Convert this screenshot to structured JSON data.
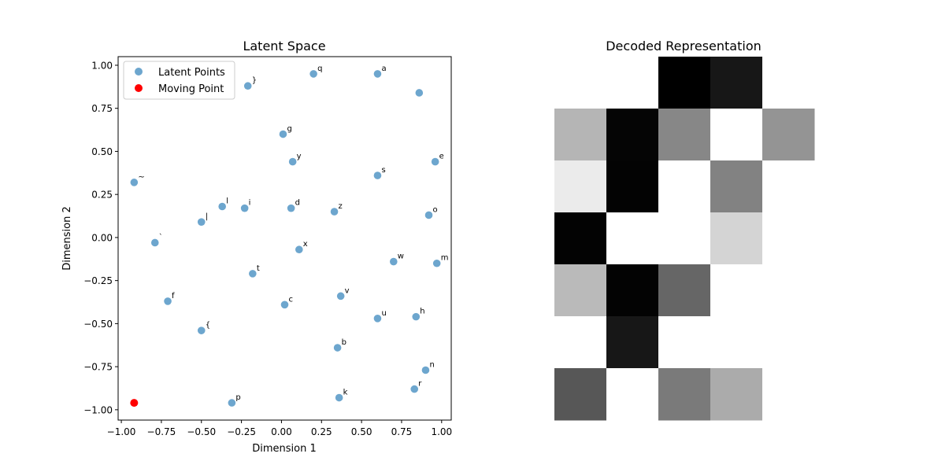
{
  "chart_data": [
    {
      "type": "scatter",
      "title": "Latent Space",
      "xlabel": "Dimension 1",
      "ylabel": "Dimension 2",
      "xlim": [
        -1.02,
        1.06
      ],
      "ylim": [
        -1.06,
        1.05
      ],
      "xticks": [
        "−1.00",
        "−0.75",
        "−0.50",
        "−0.25",
        "0.00",
        "0.25",
        "0.50",
        "0.75",
        "1.00"
      ],
      "xtick_values": [
        -1.0,
        -0.75,
        -0.5,
        -0.25,
        0.0,
        0.25,
        0.5,
        0.75,
        1.0
      ],
      "yticks": [
        "−1.00",
        "−0.75",
        "−0.50",
        "−0.25",
        "0.00",
        "0.25",
        "0.50",
        "0.75",
        "1.00"
      ],
      "ytick_values": [
        -1.0,
        -0.75,
        -0.5,
        -0.25,
        0.0,
        0.25,
        0.5,
        0.75,
        1.0
      ],
      "legend": {
        "placement": "top-left",
        "entries": [
          "Latent Points",
          "Moving Point"
        ]
      },
      "series": [
        {
          "name": "Latent Points",
          "color": "#1f77b4",
          "points": [
            {
              "x": -0.21,
              "y": 0.88,
              "label": "}"
            },
            {
              "x": 0.2,
              "y": 0.95,
              "label": "q"
            },
            {
              "x": 0.6,
              "y": 0.95,
              "label": "a"
            },
            {
              "x": 0.86,
              "y": 0.84,
              "label": ""
            },
            {
              "x": 0.01,
              "y": 0.6,
              "label": "g"
            },
            {
              "x": 0.07,
              "y": 0.44,
              "label": "y"
            },
            {
              "x": 0.96,
              "y": 0.44,
              "label": "e"
            },
            {
              "x": 0.6,
              "y": 0.36,
              "label": "s"
            },
            {
              "x": -0.92,
              "y": 0.32,
              "label": "~"
            },
            {
              "x": -0.37,
              "y": 0.18,
              "label": "l"
            },
            {
              "x": -0.23,
              "y": 0.17,
              "label": "i"
            },
            {
              "x": 0.06,
              "y": 0.17,
              "label": "d"
            },
            {
              "x": 0.33,
              "y": 0.15,
              "label": "z"
            },
            {
              "x": 0.92,
              "y": 0.13,
              "label": "o"
            },
            {
              "x": -0.5,
              "y": 0.09,
              "label": "|"
            },
            {
              "x": -0.79,
              "y": -0.03,
              "label": "`"
            },
            {
              "x": 0.11,
              "y": -0.07,
              "label": "x"
            },
            {
              "x": 0.7,
              "y": -0.14,
              "label": "w"
            },
            {
              "x": 0.97,
              "y": -0.15,
              "label": "m"
            },
            {
              "x": -0.18,
              "y": -0.21,
              "label": "t"
            },
            {
              "x": -0.71,
              "y": -0.37,
              "label": "f"
            },
            {
              "x": 0.37,
              "y": -0.34,
              "label": "v"
            },
            {
              "x": 0.02,
              "y": -0.39,
              "label": "c"
            },
            {
              "x": 0.6,
              "y": -0.47,
              "label": "u"
            },
            {
              "x": 0.84,
              "y": -0.46,
              "label": "h"
            },
            {
              "x": -0.5,
              "y": -0.54,
              "label": "{"
            },
            {
              "x": 0.35,
              "y": -0.64,
              "label": "b"
            },
            {
              "x": 0.9,
              "y": -0.77,
              "label": "n"
            },
            {
              "x": 0.83,
              "y": -0.88,
              "label": "r"
            },
            {
              "x": -0.31,
              "y": -0.96,
              "label": "p"
            },
            {
              "x": 0.36,
              "y": -0.93,
              "label": "k"
            }
          ]
        },
        {
          "name": "Moving Point",
          "color": "#ff0000",
          "points": [
            {
              "x": -0.92,
              "y": -0.96
            }
          ]
        }
      ]
    },
    {
      "type": "heatmap",
      "title": "Decoded Representation",
      "colormap": "gray",
      "rows": 7,
      "cols": 5,
      "values": [
        [
          1.0,
          1.0,
          0.0,
          0.09,
          1.0
        ],
        [
          0.71,
          0.02,
          0.53,
          1.0,
          0.58
        ],
        [
          0.92,
          0.01,
          1.0,
          0.51,
          1.0
        ],
        [
          0.01,
          1.0,
          1.0,
          0.83,
          1.0
        ],
        [
          0.73,
          0.01,
          0.4,
          1.0,
          1.0
        ],
        [
          1.0,
          0.09,
          1.0,
          1.0,
          1.0
        ],
        [
          0.34,
          1.0,
          0.48,
          0.67,
          1.0
        ]
      ]
    }
  ]
}
